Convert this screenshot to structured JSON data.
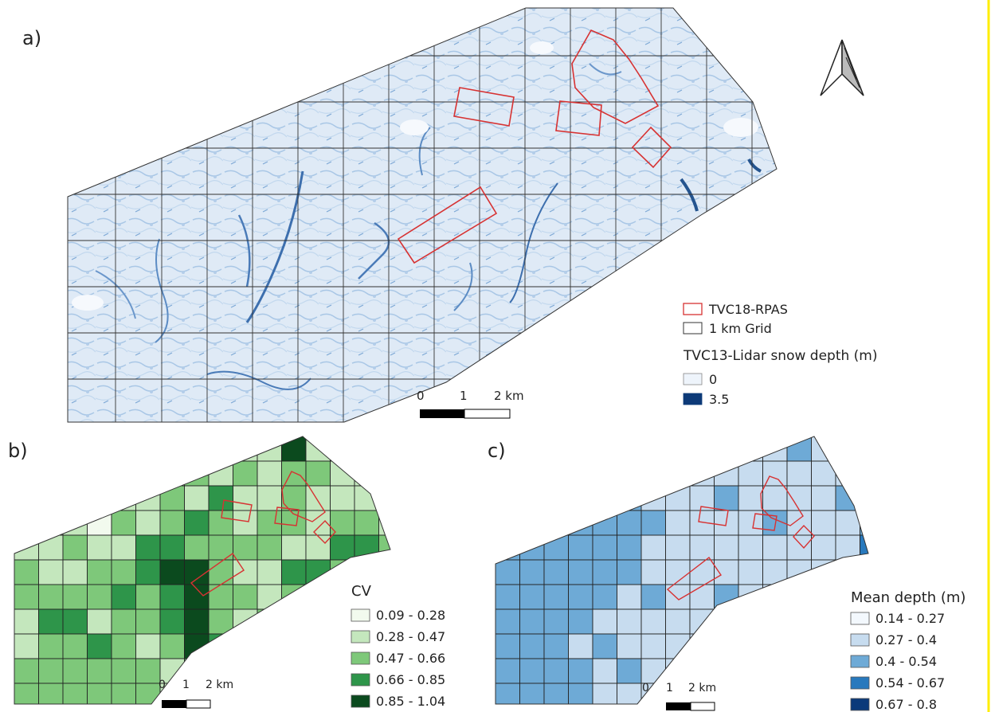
{
  "panels": {
    "a": {
      "label": "a)"
    },
    "b": {
      "label": "b)"
    },
    "c": {
      "label": "c)"
    }
  },
  "legend_a": {
    "rpas": "TVC18-RPAS",
    "grid": "1 km Grid",
    "depth_title": "TVC13-Lidar snow depth (m)",
    "depth_min": "0",
    "depth_max": "3.5",
    "rpas_color": "#d73232",
    "depth_min_color": "#eef4fb",
    "depth_max_color": "#0d3a78"
  },
  "legend_b": {
    "title": "CV",
    "classes": [
      {
        "label": "0.09 - 0.28",
        "color": "#f2faee"
      },
      {
        "label": "0.28 - 0.47",
        "color": "#c4e7bd"
      },
      {
        "label": "0.47 - 0.66",
        "color": "#7ec87a"
      },
      {
        "label": "0.66 - 0.85",
        "color": "#2e954a"
      },
      {
        "label": "0.85 - 1.04",
        "color": "#0b4a1e"
      }
    ]
  },
  "legend_c": {
    "title": "Mean depth (m)",
    "classes": [
      {
        "label": "0.14 - 0.27",
        "color": "#f3f8fd"
      },
      {
        "label": "0.27 - 0.4",
        "color": "#c7dcef"
      },
      {
        "label": "0.4 - 0.54",
        "color": "#6eaad6"
      },
      {
        "label": "0.54 - 0.67",
        "color": "#2879bd"
      },
      {
        "label": "0.67 - 0.8",
        "color": "#0b3a7a"
      }
    ]
  },
  "scalebars": {
    "a": {
      "t0": "0",
      "t1": "1",
      "t2": "2 km"
    },
    "b": {
      "t0": "0",
      "t1": "1",
      "t2": "2 km"
    },
    "c": {
      "t0": "0",
      "t1": "1",
      "t2": "2 km"
    }
  },
  "north_arrow_icon": "north-arrow-icon"
}
